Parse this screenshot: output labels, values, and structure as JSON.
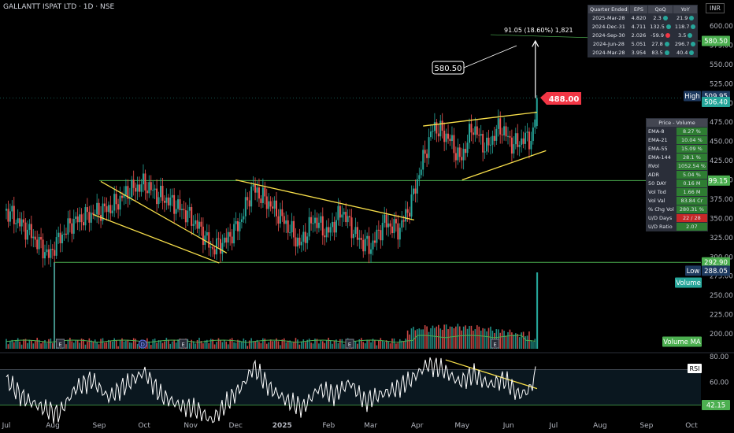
{
  "header": {
    "title": "GALLANTT ISPAT LTD · 1D · NSE",
    "currency": "INR"
  },
  "price_axis": {
    "ticks": [
      "600.00",
      "575.00",
      "550.00",
      "525.00",
      "500.00",
      "475.00",
      "450.00",
      "425.00",
      "400.00",
      "375.00",
      "350.00",
      "325.00",
      "300.00",
      "275.00",
      "250.00",
      "225.00",
      "200.00"
    ]
  },
  "rsi_axis": {
    "ticks": [
      "80.00",
      "60.00"
    ]
  },
  "time_axis": {
    "labels": [
      "Jul",
      "Aug",
      "Sep",
      "Oct",
      "Nov",
      "Dec",
      "2025",
      "Feb",
      "Mar",
      "Apr",
      "May",
      "Jun",
      "Jul",
      "Aug",
      "Sep",
      "Oct"
    ]
  },
  "badges": {
    "target": "580.50",
    "high_label": "High",
    "high_value": "509.95",
    "last": "506.40",
    "breakout": "399.15",
    "support": "292.90",
    "low_label": "Low",
    "low_value": "288.05",
    "volume": "Volume",
    "volume_ma": "Volume MA",
    "rsi": "RSI",
    "rsi_value": "42.15"
  },
  "annotations": {
    "target_box": "580.50",
    "breakout_price": "488.00",
    "measure": "91.05 (18.60%) 1,821"
  },
  "event_markers": [
    "E",
    "D",
    "E",
    "E",
    "E"
  ],
  "quarter_table": {
    "headers": [
      "Quarter Ended",
      "EPS",
      "QoQ",
      "YoY"
    ],
    "rows": [
      {
        "q": "2025-Mar-28",
        "eps": "4.820",
        "qoq": "2.3",
        "qoq_c": "g",
        "yoy": "21.9",
        "yoy_c": "g"
      },
      {
        "q": "2024-Dec-31",
        "eps": "4.711",
        "qoq": "132.5",
        "qoq_c": "g",
        "yoy": "118.7",
        "yoy_c": "g"
      },
      {
        "q": "2024-Sep-30",
        "eps": "2.026",
        "qoq": "-59.9",
        "qoq_c": "r",
        "yoy": "3.5",
        "yoy_c": "g"
      },
      {
        "q": "2024-Jun-28",
        "eps": "5.051",
        "qoq": "27.8",
        "qoq_c": "g",
        "yoy": "296.7",
        "yoy_c": "g"
      },
      {
        "q": "2024-Mar-28",
        "eps": "3.954",
        "qoq": "83.5",
        "qoq_c": "g",
        "yoy": "40.4",
        "yoy_c": "g"
      }
    ]
  },
  "volume_table": {
    "header": "Price - Volume",
    "rows": [
      {
        "k": "EMA-8",
        "v": "8.27 %"
      },
      {
        "k": "EMA-21",
        "v": "10.04 %"
      },
      {
        "k": "EMA-55",
        "v": "15.09 %"
      },
      {
        "k": "EMA-144",
        "v": "28.1 %"
      },
      {
        "k": "RVol",
        "v": "1052.54 %"
      },
      {
        "k": "ADR",
        "v": "5.04 %"
      },
      {
        "k": "50 DAY",
        "v": "0.16 M"
      },
      {
        "k": "Vol Tod",
        "v": "1.66 M"
      },
      {
        "k": "Vol Val",
        "v": "83.84 Cr"
      },
      {
        "k": "% Chg Vol",
        "v": "280.31 %"
      },
      {
        "k": "U/D Days",
        "v": "22 / 28",
        "red": true
      },
      {
        "k": "U/D Ratio",
        "v": "2.07"
      }
    ]
  },
  "chart_data": {
    "type": "candlestick",
    "title": "GALLANTT ISPAT LTD · 1D · NSE",
    "ylim": [
      190,
      610
    ],
    "rsi_ylim": [
      25,
      88
    ],
    "price_anchors": [
      [
        "2024-07-01",
        360
      ],
      [
        "2024-07-15",
        335
      ],
      [
        "2024-07-30",
        300
      ],
      [
        "2024-08-02",
        315
      ],
      [
        "2024-08-14",
        345
      ],
      [
        "2024-08-26",
        355
      ],
      [
        "2024-09-10",
        365
      ],
      [
        "2024-09-20",
        385
      ],
      [
        "2024-10-01",
        395
      ],
      [
        "2024-10-10",
        380
      ],
      [
        "2024-10-20",
        370
      ],
      [
        "2024-10-30",
        355
      ],
      [
        "2024-11-08",
        335
      ],
      [
        "2024-11-15",
        310
      ],
      [
        "2024-11-25",
        322
      ],
      [
        "2024-12-04",
        345
      ],
      [
        "2024-12-12",
        390
      ],
      [
        "2024-12-23",
        370
      ],
      [
        "2025-01-03",
        345
      ],
      [
        "2025-01-13",
        315
      ],
      [
        "2025-01-22",
        350
      ],
      [
        "2025-01-31",
        330
      ],
      [
        "2025-02-10",
        360
      ],
      [
        "2025-02-20",
        325
      ],
      [
        "2025-03-01",
        312
      ],
      [
        "2025-03-10",
        345
      ],
      [
        "2025-03-20",
        335
      ],
      [
        "2025-03-28",
        370
      ],
      [
        "2025-04-04",
        420
      ],
      [
        "2025-04-12",
        470
      ],
      [
        "2025-04-22",
        455
      ],
      [
        "2025-04-30",
        425
      ],
      [
        "2025-05-08",
        470
      ],
      [
        "2025-05-17",
        440
      ],
      [
        "2025-05-26",
        470
      ],
      [
        "2025-06-04",
        445
      ],
      [
        "2025-06-13",
        455
      ],
      [
        "2025-06-17",
        452
      ],
      [
        "2025-06-20",
        506.4
      ]
    ],
    "annotated_levels": {
      "target": 580.5,
      "high": 509.95,
      "last": 506.4,
      "breakout_label": 488.0,
      "resistance": 399.15,
      "support": 292.9,
      "low": 288.05
    },
    "rsi_anchors": [
      [
        "2024-07-01",
        62
      ],
      [
        "2024-07-12",
        48
      ],
      [
        "2024-07-25",
        40
      ],
      [
        "2024-08-05",
        35
      ],
      [
        "2024-08-16",
        55
      ],
      [
        "2024-08-27",
        62
      ],
      [
        "2024-09-07",
        48
      ],
      [
        "2024-09-19",
        58
      ],
      [
        "2024-10-01",
        68
      ],
      [
        "2024-10-12",
        50
      ],
      [
        "2024-10-24",
        42
      ],
      [
        "2024-11-06",
        38
      ],
      [
        "2024-11-15",
        30
      ],
      [
        "2024-11-26",
        45
      ],
      [
        "2024-12-06",
        58
      ],
      [
        "2024-12-13",
        72
      ],
      [
        "2024-12-24",
        55
      ],
      [
        "2025-01-05",
        45
      ],
      [
        "2025-01-15",
        40
      ],
      [
        "2025-01-25",
        55
      ],
      [
        "2025-02-05",
        50
      ],
      [
        "2025-02-15",
        60
      ],
      [
        "2025-02-25",
        45
      ],
      [
        "2025-03-07",
        50
      ],
      [
        "2025-03-18",
        55
      ],
      [
        "2025-03-28",
        62
      ],
      [
        "2025-04-08",
        74
      ],
      [
        "2025-04-18",
        70
      ],
      [
        "2025-04-29",
        60
      ],
      [
        "2025-05-09",
        66
      ],
      [
        "2025-05-19",
        58
      ],
      [
        "2025-05-29",
        62
      ],
      [
        "2025-06-08",
        50
      ],
      [
        "2025-06-15",
        54
      ],
      [
        "2025-06-20",
        69
      ]
    ],
    "rsi_levels": [
      70,
      42.15
    ],
    "volume_spike_dates": [
      "2024-08-02",
      "2025-06-20"
    ]
  },
  "colors": {
    "up": "#26a69a",
    "down": "#ef5350",
    "trend": "#f9e04b",
    "level": "#4caf50",
    "rsi": "#ffffff",
    "volume_ma": "#4caf50",
    "badge_green": "#4caf50",
    "badge_red": "#f23645",
    "badge_navy": "#1e3a5f"
  }
}
